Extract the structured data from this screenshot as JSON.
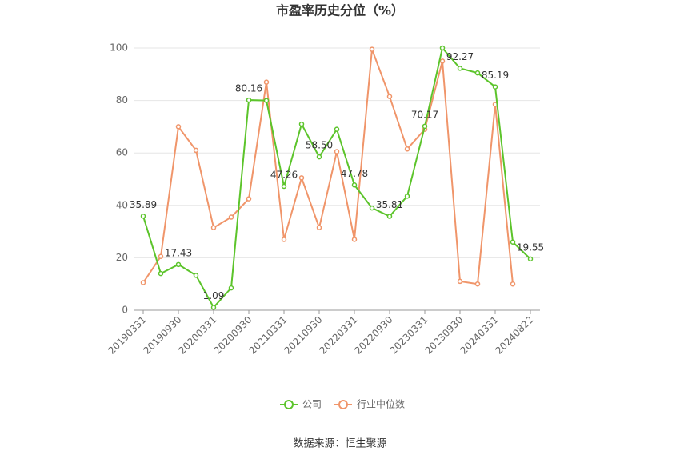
{
  "chart_data": {
    "type": "line",
    "title": "市盈率历史分位（%）",
    "categories": [
      "20190331",
      null,
      "20190930",
      null,
      "20200331",
      null,
      "20200930",
      null,
      "20210331",
      null,
      "20210930",
      null,
      "20220331",
      null,
      "20220930",
      null,
      "20230331",
      null,
      "20230930",
      null,
      "20240331",
      null,
      "20240822"
    ],
    "series": [
      {
        "name": "公司",
        "color": "#5cc42b",
        "values": [
          35.89,
          14,
          17.43,
          13.3,
          1.09,
          8.5,
          80.16,
          80,
          47.26,
          71,
          58.5,
          69,
          47.78,
          39,
          35.81,
          43.5,
          70.17,
          100,
          92.27,
          90.5,
          85.19,
          26,
          19.55
        ],
        "value_labels": [
          "35.89",
          null,
          "17.43",
          null,
          "1.09",
          null,
          "80.16",
          null,
          "47.26",
          null,
          "58.50",
          null,
          "47.78",
          null,
          "35.81",
          null,
          "70.17",
          null,
          "92.27",
          null,
          "85.19",
          null,
          "19.55"
        ]
      },
      {
        "name": "行业中位数",
        "color": "#f0956a",
        "values": [
          10.5,
          20.5,
          70,
          61,
          31.5,
          35.5,
          42.5,
          87,
          27,
          50.5,
          31.5,
          60.5,
          27,
          99.5,
          81.5,
          61.5,
          69,
          95,
          11,
          10,
          78.5,
          10,
          null
        ]
      }
    ],
    "ylim": [
      0,
      100
    ],
    "yticks": [
      0,
      20,
      40,
      60,
      80,
      100
    ],
    "grid": true,
    "legend": "bottom",
    "source": "数据来源：恒生聚源"
  }
}
